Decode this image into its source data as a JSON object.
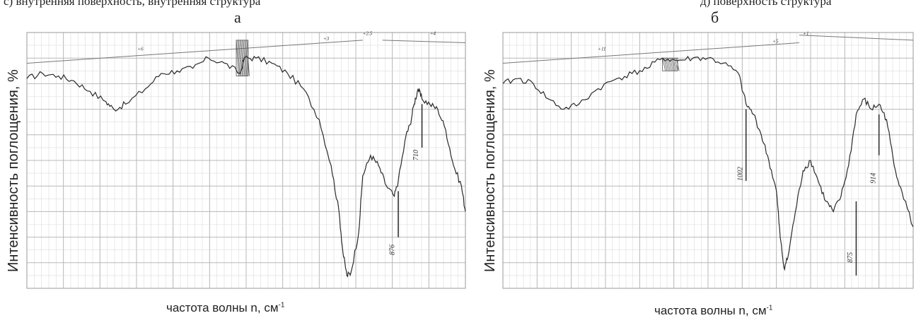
{
  "header": {
    "left_fragment": "с) внутренняя поверхность, внутренняя структура",
    "right_fragment": "д) поверхность структура"
  },
  "colors": {
    "trace": "#2a2a2a",
    "grid": "#b8b8b8",
    "grid_minor": "#dcdcdc"
  },
  "chart_data": [
    {
      "type": "line",
      "panel_label": "а",
      "ylabel": "Интенсивность поглощения, %",
      "xlabel": "частота волны n, см",
      "xlabel_sup": "-1",
      "annotations": [
        "876",
        "710",
        "+6",
        "+3",
        "+2.5",
        "+4"
      ],
      "series": [
        {
          "values": [
            [
              0,
              0.82
            ],
            [
              4,
              0.84
            ],
            [
              8,
              0.83
            ],
            [
              12,
              0.81
            ],
            [
              16,
              0.77
            ],
            [
              20,
              0.73
            ],
            [
              22,
              0.7
            ],
            [
              25,
              0.72
            ],
            [
              30,
              0.78
            ],
            [
              34,
              0.84
            ],
            [
              38,
              0.85
            ],
            [
              42,
              0.86
            ],
            [
              46,
              0.9
            ],
            [
              50,
              0.88
            ],
            [
              54,
              0.84
            ],
            [
              55,
              0.9
            ],
            [
              58,
              0.9
            ],
            [
              62,
              0.88
            ],
            [
              66,
              0.84
            ],
            [
              70,
              0.78
            ],
            [
              74,
              0.66
            ],
            [
              77,
              0.48
            ],
            [
              79,
              0.3
            ],
            [
              80,
              0.14
            ],
            [
              81,
              0.05
            ],
            [
              82,
              0.06
            ],
            [
              84,
              0.22
            ],
            [
              85,
              0.44
            ],
            [
              87,
              0.52
            ],
            [
              89,
              0.48
            ],
            [
              91,
              0.4
            ],
            [
              93,
              0.36
            ],
            [
              94,
              0.42
            ],
            [
              96,
              0.6
            ],
            [
              97,
              0.64
            ],
            [
              98,
              0.72
            ],
            [
              99,
              0.78
            ],
            [
              100,
              0.74
            ],
            [
              102,
              0.72
            ],
            [
              104,
              0.7
            ],
            [
              106,
              0.62
            ],
            [
              108,
              0.48
            ],
            [
              110,
              0.4
            ],
            [
              111,
              0.3
            ]
          ]
        }
      ]
    },
    {
      "type": "line",
      "panel_label": "б",
      "ylabel": "Интенсивность поглощения, %",
      "xlabel": "частота волны n, см",
      "xlabel_sup": "-1",
      "annotations": [
        "1002",
        "875",
        "914",
        "+11",
        "+5",
        "+1"
      ],
      "series": [
        {
          "values": [
            [
              0,
              0.8
            ],
            [
              4,
              0.82
            ],
            [
              8,
              0.8
            ],
            [
              12,
              0.74
            ],
            [
              16,
              0.7
            ],
            [
              20,
              0.72
            ],
            [
              25,
              0.78
            ],
            [
              30,
              0.82
            ],
            [
              34,
              0.84
            ],
            [
              38,
              0.86
            ],
            [
              42,
              0.9
            ],
            [
              46,
              0.89
            ],
            [
              50,
              0.9
            ],
            [
              54,
              0.9
            ],
            [
              58,
              0.88
            ],
            [
              62,
              0.84
            ],
            [
              64,
              0.72
            ],
            [
              66,
              0.68
            ],
            [
              68,
              0.6
            ],
            [
              70,
              0.5
            ],
            [
              72,
              0.38
            ],
            [
              73,
              0.2
            ],
            [
              74,
              0.08
            ],
            [
              75,
              0.12
            ],
            [
              77,
              0.3
            ],
            [
              79,
              0.46
            ],
            [
              81,
              0.5
            ],
            [
              83,
              0.42
            ],
            [
              85,
              0.34
            ],
            [
              87,
              0.3
            ],
            [
              89,
              0.36
            ],
            [
              91,
              0.48
            ],
            [
              93,
              0.68
            ],
            [
              95,
              0.74
            ],
            [
              97,
              0.7
            ],
            [
              99,
              0.72
            ],
            [
              101,
              0.66
            ],
            [
              103,
              0.48
            ],
            [
              105,
              0.38
            ],
            [
              108,
              0.24
            ]
          ]
        }
      ]
    }
  ]
}
